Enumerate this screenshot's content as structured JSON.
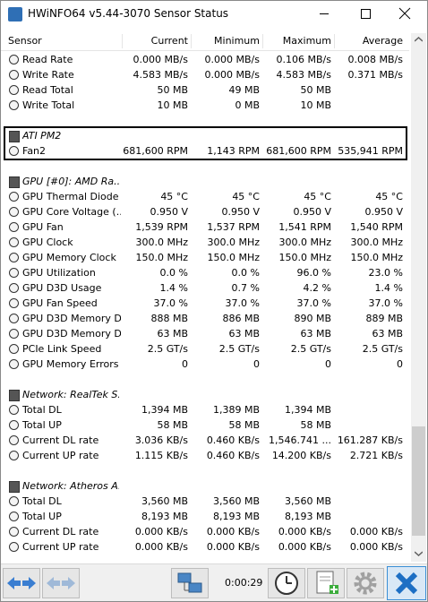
{
  "window": {
    "title": "HWiNFO64 v5.44-3070 Sensor Status"
  },
  "columns": [
    "Sensor",
    "Current",
    "Minimum",
    "Maximum",
    "Average"
  ],
  "sections": [
    {
      "rows": [
        {
          "label": "Read Rate",
          "values": [
            "0.000 MB/s",
            "0.000 MB/s",
            "0.106 MB/s",
            "0.008 MB/s"
          ]
        },
        {
          "label": "Write Rate",
          "values": [
            "4.583 MB/s",
            "0.000 MB/s",
            "4.583 MB/s",
            "0.371 MB/s"
          ]
        },
        {
          "label": "Read Total",
          "values": [
            "50 MB",
            "49 MB",
            "50 MB"
          ]
        },
        {
          "label": "Write Total",
          "values": [
            "10 MB",
            "0 MB",
            "10 MB"
          ]
        }
      ]
    },
    {
      "group": "ATI PM2",
      "rows": [
        {
          "label": "Fan2",
          "values": [
            "681,600 RPM",
            "1,143 RPM",
            "681,600 RPM",
            "535,941 RPM"
          ]
        }
      ]
    },
    {
      "group": "GPU [#0]: AMD Ra...",
      "rows": [
        {
          "label": "GPU Thermal Diode",
          "values": [
            "45 °C",
            "45 °C",
            "45 °C",
            "45 °C"
          ]
        },
        {
          "label": "GPU Core Voltage (...",
          "values": [
            "0.950 V",
            "0.950 V",
            "0.950 V",
            "0.950 V"
          ]
        },
        {
          "label": "GPU Fan",
          "values": [
            "1,539 RPM",
            "1,537 RPM",
            "1,541 RPM",
            "1,540 RPM"
          ]
        },
        {
          "label": "GPU Clock",
          "values": [
            "300.0 MHz",
            "300.0 MHz",
            "300.0 MHz",
            "300.0 MHz"
          ]
        },
        {
          "label": "GPU Memory Clock",
          "values": [
            "150.0 MHz",
            "150.0 MHz",
            "150.0 MHz",
            "150.0 MHz"
          ]
        },
        {
          "label": "GPU Utilization",
          "values": [
            "0.0 %",
            "0.0 %",
            "96.0 %",
            "23.0 %"
          ]
        },
        {
          "label": "GPU D3D Usage",
          "values": [
            "1.4 %",
            "0.7 %",
            "4.2 %",
            "1.4 %"
          ]
        },
        {
          "label": "GPU Fan Speed",
          "values": [
            "37.0 %",
            "37.0 %",
            "37.0 %",
            "37.0 %"
          ]
        },
        {
          "label": "GPU D3D Memory D...",
          "values": [
            "888 MB",
            "886 MB",
            "890 MB",
            "889 MB"
          ]
        },
        {
          "label": "GPU D3D Memory D...",
          "values": [
            "63 MB",
            "63 MB",
            "63 MB",
            "63 MB"
          ]
        },
        {
          "label": "PCIe Link Speed",
          "values": [
            "2.5 GT/s",
            "2.5 GT/s",
            "2.5 GT/s",
            "2.5 GT/s"
          ]
        },
        {
          "label": "GPU Memory Errors",
          "values": [
            "0",
            "0",
            "0",
            "0"
          ]
        }
      ]
    },
    {
      "group": "Network: RealTek S...",
      "rows": [
        {
          "label": "Total DL",
          "values": [
            "1,394 MB",
            "1,389 MB",
            "1,394 MB"
          ]
        },
        {
          "label": "Total UP",
          "values": [
            "58 MB",
            "58 MB",
            "58 MB"
          ]
        },
        {
          "label": "Current DL rate",
          "values": [
            "3.036 KB/s",
            "0.460 KB/s",
            "1,546.741 ...",
            "161.287 KB/s"
          ]
        },
        {
          "label": "Current UP rate",
          "values": [
            "1.115 KB/s",
            "0.460 KB/s",
            "14.200 KB/s",
            "2.721 KB/s"
          ]
        }
      ]
    },
    {
      "group": "Network: Atheros A...",
      "rows": [
        {
          "label": "Total DL",
          "values": [
            "3,560 MB",
            "3,560 MB",
            "3,560 MB"
          ]
        },
        {
          "label": "Total UP",
          "values": [
            "8,193 MB",
            "8,193 MB",
            "8,193 MB"
          ]
        },
        {
          "label": "Current DL rate",
          "values": [
            "0.000 KB/s",
            "0.000 KB/s",
            "0.000 KB/s",
            "0.000 KB/s"
          ]
        },
        {
          "label": "Current UP rate",
          "values": [
            "0.000 KB/s",
            "0.000 KB/s",
            "0.000 KB/s",
            "0.000 KB/s"
          ]
        }
      ]
    }
  ],
  "toolbar": {
    "timer": "0:00:29"
  }
}
